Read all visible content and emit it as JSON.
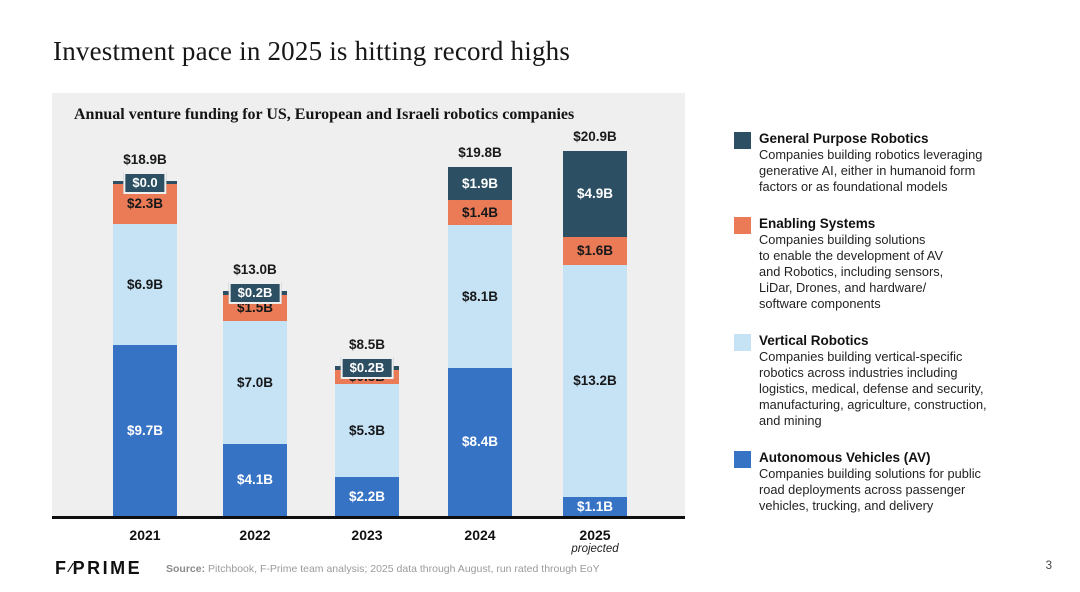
{
  "header": {
    "title": "Investment pace in 2025 is hitting record highs"
  },
  "chart_data": {
    "type": "bar",
    "variant": "stacked-vertical",
    "title": "Annual venture funding for US, European and Israeli robotics companies",
    "unit": "USD billions",
    "categories": [
      "2021",
      "2022",
      "2023",
      "2024",
      "2025"
    ],
    "totals": [
      18.9,
      13.0,
      8.5,
      19.8,
      20.9
    ],
    "series": [
      {
        "name": "General Purpose Robotics",
        "color": "#2c4f63",
        "values": [
          0.0,
          0.2,
          0.2,
          1.9,
          4.9
        ]
      },
      {
        "name": "Enabling Systems",
        "color": "#eb7a56",
        "values": [
          2.3,
          1.5,
          0.8,
          1.4,
          1.6
        ]
      },
      {
        "name": "Vertical Robotics",
        "color": "#c6e3f5",
        "values": [
          6.9,
          7.0,
          5.3,
          8.1,
          13.2
        ]
      },
      {
        "name": "Autonomous Vehicles (AV)",
        "color": "#3673c5",
        "values": [
          9.7,
          4.1,
          2.2,
          8.4,
          1.1
        ]
      }
    ],
    "legend_position": "right",
    "grid": false,
    "bars": [
      {
        "year": "2021",
        "note": "",
        "total_label": "$18.9B",
        "segments": [
          {
            "name": "General Purpose Robotics",
            "value": 0.0,
            "label": "$0.0"
          },
          {
            "name": "Enabling Systems",
            "value": 2.3,
            "label": "$2.3B"
          },
          {
            "name": "Vertical Robotics",
            "value": 6.9,
            "label": "$6.9B"
          },
          {
            "name": "Autonomous Vehicles (AV)",
            "value": 9.7,
            "label": "$9.7B"
          }
        ]
      },
      {
        "year": "2022",
        "note": "",
        "total_label": "$13.0B",
        "segments": [
          {
            "name": "General Purpose Robotics",
            "value": 0.2,
            "label": "$0.2B"
          },
          {
            "name": "Enabling Systems",
            "value": 1.5,
            "label": "$1.5B"
          },
          {
            "name": "Vertical Robotics",
            "value": 7.0,
            "label": "$7.0B"
          },
          {
            "name": "Autonomous Vehicles (AV)",
            "value": 4.1,
            "label": "$4.1B"
          }
        ]
      },
      {
        "year": "2023",
        "note": "",
        "total_label": "$8.5B",
        "segments": [
          {
            "name": "General Purpose Robotics",
            "value": 0.2,
            "label": "$0.2B"
          },
          {
            "name": "Enabling Systems",
            "value": 0.8,
            "label": "$0.8B"
          },
          {
            "name": "Vertical Robotics",
            "value": 5.3,
            "label": "$5.3B"
          },
          {
            "name": "Autonomous Vehicles (AV)",
            "value": 2.2,
            "label": "$2.2B"
          }
        ]
      },
      {
        "year": "2024",
        "note": "",
        "total_label": "$19.8B",
        "segments": [
          {
            "name": "General Purpose Robotics",
            "value": 1.9,
            "label": "$1.9B"
          },
          {
            "name": "Enabling Systems",
            "value": 1.4,
            "label": "$1.4B"
          },
          {
            "name": "Vertical Robotics",
            "value": 8.1,
            "label": "$8.1B"
          },
          {
            "name": "Autonomous Vehicles (AV)",
            "value": 8.4,
            "label": "$8.4B"
          }
        ]
      },
      {
        "year": "2025",
        "note": "projected",
        "total_label": "$20.9B",
        "segments": [
          {
            "name": "General Purpose Robotics",
            "value": 4.9,
            "label": "$4.9B"
          },
          {
            "name": "Enabling Systems",
            "value": 1.6,
            "label": "$1.6B"
          },
          {
            "name": "Vertical Robotics",
            "value": 13.2,
            "label": "$13.2B"
          },
          {
            "name": "Autonomous Vehicles (AV)",
            "value": 1.1,
            "label": "$1.1B"
          }
        ]
      }
    ]
  },
  "legend": {
    "items": [
      {
        "title": "General Purpose Robotics",
        "color": "#2c4f63",
        "description": "Companies building robotics leveraging\ngenerative AI, either in humanoid form\nfactors or as foundational models"
      },
      {
        "title": "Enabling Systems",
        "color": "#eb7a56",
        "description": "Companies building solutions\nto enable the development of AV\nand Robotics, including sensors,\nLiDar, Drones, and hardware/\nsoftware components"
      },
      {
        "title": "Vertical Robotics",
        "color": "#c6e3f5",
        "description": "Companies building vertical-specific\nrobotics across industries including\nlogistics, medical, defense and security,\nmanufacturing, agriculture, construction,\nand mining"
      },
      {
        "title": "Autonomous Vehicles (AV)",
        "color": "#3673c5",
        "description": "Companies building solutions for public\nroad deployments across passenger\nvehicles, trucking, and delivery"
      }
    ]
  },
  "footer": {
    "logo_f": "F",
    "logo_slash": "⁄",
    "logo_rest": "PRIME",
    "source_label": "Source:",
    "source_text": " Pitchbook, F-Prime team analysis; 2025 data through August, run rated through EoY",
    "page_number": "3"
  }
}
